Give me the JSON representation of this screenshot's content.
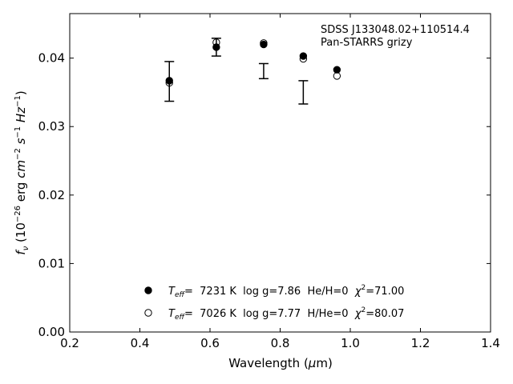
{
  "chart_data": {
    "type": "scatter",
    "xlabel_parts": [
      "Wavelength (",
      "μ",
      "m)"
    ],
    "ylabel_parts": {
      "f": "f",
      "nu": "ν",
      "open": " (10",
      "exp1": "−26",
      "mid": " erg ",
      "cm": "cm",
      "exp2": "−2",
      "s": " s",
      "exp3": "−1",
      "hz": " Hz",
      "exp4": "−1",
      "close": ")"
    },
    "xlim": [
      0.2,
      1.4
    ],
    "ylim": [
      0.0,
      0.0465
    ],
    "x_ticks": [
      0.2,
      0.4,
      0.6,
      0.8,
      1.0,
      1.2,
      1.4
    ],
    "x_tick_labels": [
      "0.2",
      "0.4",
      "0.6",
      "0.8",
      "1.0",
      "1.2",
      "1.4"
    ],
    "y_ticks": [
      0.0,
      0.01,
      0.02,
      0.03,
      0.04
    ],
    "y_tick_labels": [
      "0.00",
      "0.01",
      "0.02",
      "0.03",
      "0.04"
    ],
    "grid": false,
    "annotations": [
      "SDSS J133048.02+110514.4",
      "Pan-STARRS grizy"
    ],
    "observed": [
      {
        "x": 0.484,
        "y": 0.0366,
        "err": 0.0029
      },
      {
        "x": 0.618,
        "y": 0.0416,
        "err": 0.0013
      },
      {
        "x": 0.753,
        "y": 0.0381,
        "err": 0.0011
      },
      {
        "x": 0.866,
        "y": 0.035,
        "err": 0.0017
      }
    ],
    "series": [
      {
        "marker": "filled",
        "x": [
          0.484,
          0.618,
          0.753,
          0.866,
          0.962
        ],
        "y": [
          0.0367,
          0.0416,
          0.042,
          0.0403,
          0.0383
        ],
        "legend": {
          "T": "T",
          "sub": "eff",
          "text": "=  7231 K  log g=7.86  He/H=0  ",
          "chi": "χ",
          "sup": "2",
          "end": "=71.00"
        }
      },
      {
        "marker": "open",
        "x": [
          0.484,
          0.618,
          0.753,
          0.866,
          0.962
        ],
        "y": [
          0.0364,
          0.0423,
          0.0422,
          0.0399,
          0.0374
        ],
        "legend": {
          "T": "T",
          "sub": "eff",
          "text": "=  7026 K  log g=7.77  H/He=0  ",
          "chi": "χ",
          "sup": "2",
          "end": "=80.07"
        }
      }
    ]
  }
}
